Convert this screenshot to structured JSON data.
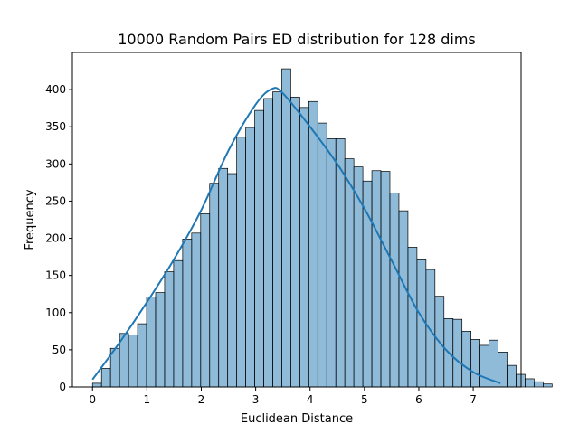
{
  "chart_data": {
    "type": "bar",
    "title": "10000 Random Pairs ED distribution for 128 dims",
    "xlabel": "Euclidean Distance",
    "ylabel": "Frequency",
    "xlim": [
      -0.37,
      7.88
    ],
    "ylim": [
      0,
      450
    ],
    "xticks": [
      0,
      1,
      2,
      3,
      4,
      5,
      6,
      7
    ],
    "yticks": [
      0,
      50,
      100,
      150,
      200,
      250,
      300,
      350,
      400
    ],
    "bin_start": 0.0,
    "bin_width": 0.1657,
    "values": [
      5,
      25,
      52,
      72,
      70,
      85,
      121,
      127,
      155,
      170,
      199,
      207,
      233,
      274,
      294,
      287,
      336,
      349,
      372,
      388,
      397,
      428,
      390,
      376,
      384,
      355,
      334,
      334,
      307,
      296,
      277,
      291,
      290,
      261,
      237,
      188,
      171,
      158,
      122,
      92,
      91,
      75,
      64,
      56,
      63,
      47,
      29,
      17,
      11,
      7,
      4
    ],
    "kde": {
      "x": [
        0,
        0.5,
        1,
        1.5,
        2,
        2.5,
        3,
        3.3,
        3.5,
        4,
        4.5,
        5,
        5.5,
        6,
        6.5,
        7,
        7.5
      ],
      "y": [
        10,
        60,
        114,
        172,
        238,
        318,
        380,
        401,
        395,
        350,
        300,
        240,
        170,
        100,
        50,
        20,
        5
      ]
    },
    "colors": {
      "bar": "#1f77b4",
      "kde": "#1f77b4"
    },
    "grid": false
  }
}
